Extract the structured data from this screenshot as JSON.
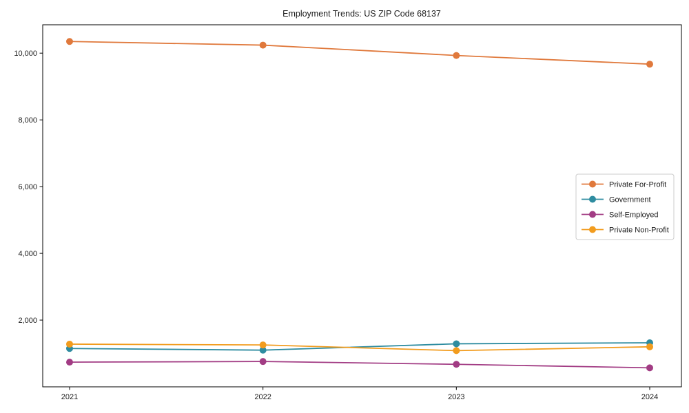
{
  "title": "Employment Trends: US ZIP Code 68137",
  "chart_data": {
    "type": "line",
    "title": "Employment Trends: US ZIP Code 68137",
    "xlabel": "",
    "ylabel": "",
    "x": [
      2021,
      2022,
      2023,
      2024
    ],
    "x_tick_labels": [
      "2021",
      "2022",
      "2023",
      "2024"
    ],
    "yticks": [
      2000,
      4000,
      6000,
      8000,
      10000
    ],
    "ytick_labels": [
      "2,000",
      "4,000",
      "6,000",
      "8,000",
      "10,000"
    ],
    "ylim": [
      0,
      10850
    ],
    "grid": false,
    "legend_position": "center-right",
    "marker": "circle",
    "series": [
      {
        "name": "Private For-Profit",
        "color": "#E0793C",
        "values": [
          10350,
          10240,
          9930,
          9670
        ]
      },
      {
        "name": "Government",
        "color": "#2E8CA0",
        "values": [
          1150,
          1100,
          1290,
          1320
        ]
      },
      {
        "name": "Self-Employed",
        "color": "#A23C84",
        "values": [
          740,
          760,
          675,
          570
        ]
      },
      {
        "name": "Private Non-Profit",
        "color": "#F29C1E",
        "values": [
          1280,
          1255,
          1085,
          1200
        ]
      }
    ]
  }
}
